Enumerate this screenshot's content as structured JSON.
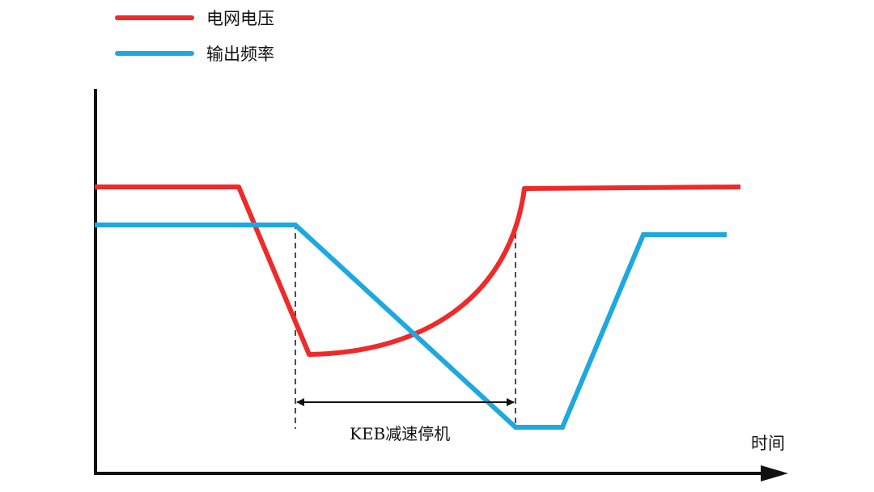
{
  "legend": [
    {
      "label": "电网电压",
      "color": "#ee2a2a"
    },
    {
      "label": "输出频率",
      "color": "#1ea8e0"
    }
  ],
  "axes": {
    "x_label": "时间"
  },
  "annotation": {
    "label": "KEB减速停机"
  },
  "colors": {
    "axis": "#111111",
    "voltage": "#ee2a2a",
    "frequency": "#1ea8e0"
  }
}
